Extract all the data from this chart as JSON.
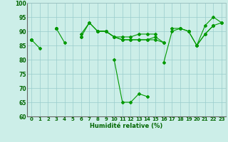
{
  "title": "",
  "xlabel": "Humidité relative (%)",
  "ylabel": "",
  "xlim": [
    -0.5,
    23.5
  ],
  "ylim": [
    60,
    100
  ],
  "yticks": [
    60,
    65,
    70,
    75,
    80,
    85,
    90,
    95,
    100
  ],
  "xticks": [
    0,
    1,
    2,
    3,
    4,
    5,
    6,
    7,
    8,
    9,
    10,
    11,
    12,
    13,
    14,
    15,
    16,
    17,
    18,
    19,
    20,
    21,
    22,
    23
  ],
  "bg_color": "#cceee8",
  "grid_color": "#99cccc",
  "line_color": "#009900",
  "series": [
    [
      87,
      84,
      null,
      91,
      86,
      null,
      88,
      93,
      90,
      null,
      80,
      65,
      65,
      68,
      67,
      null,
      79,
      90,
      91,
      null,
      85,
      92,
      95,
      93
    ],
    [
      87,
      null,
      null,
      91,
      null,
      null,
      89,
      93,
      90,
      90,
      88,
      88,
      88,
      89,
      89,
      89,
      null,
      91,
      91,
      90,
      85,
      89,
      92,
      93
    ],
    [
      87,
      null,
      null,
      91,
      null,
      null,
      88,
      null,
      90,
      90,
      88,
      87,
      87,
      87,
      87,
      88,
      86,
      null,
      91,
      90,
      85,
      89,
      92,
      null
    ],
    [
      87,
      null,
      null,
      91,
      null,
      null,
      null,
      null,
      90,
      90,
      88,
      87,
      87,
      87,
      87,
      87,
      86,
      null,
      null,
      90,
      null,
      null,
      92,
      null
    ]
  ]
}
